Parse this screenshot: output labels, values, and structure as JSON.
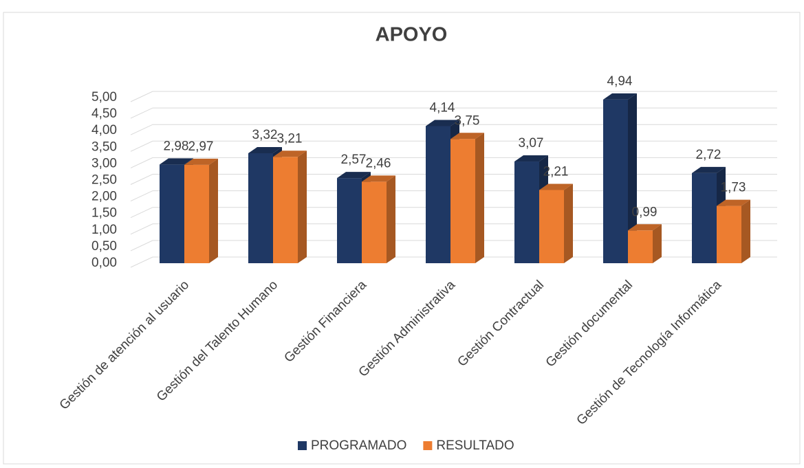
{
  "chart_data": {
    "type": "bar3d",
    "title": "APOYO",
    "categories": [
      "Gestión de atención al usuario",
      "Gestión del Talento Humano",
      "Gestión Financiera",
      "Gestión Administrativa",
      "Gestión Contractual",
      "Gestión documental",
      "Gestión de Tecnología Informática"
    ],
    "series": [
      {
        "name": "PROGRAMADO",
        "color": "#1f3864",
        "values": [
          2.98,
          3.32,
          2.57,
          4.14,
          3.07,
          4.94,
          2.72
        ],
        "value_labels": [
          "2,98",
          "3,32",
          "2,57",
          "4,14",
          "3,07",
          "4,94",
          "2,72"
        ]
      },
      {
        "name": "RESULTADO",
        "color": "#ed7d31",
        "values": [
          2.97,
          3.21,
          2.46,
          3.75,
          2.21,
          0.99,
          1.73
        ],
        "value_labels": [
          "2,97",
          "3,21",
          "2,46",
          "3,75",
          "2,21",
          "0,99",
          "1,73"
        ]
      }
    ],
    "ylim": [
      0,
      5
    ],
    "yticks": [
      {
        "value": 0,
        "label": "0,00"
      },
      {
        "value": 0.5,
        "label": "0,50"
      },
      {
        "value": 1,
        "label": "1,00"
      },
      {
        "value": 1.5,
        "label": "1,50"
      },
      {
        "value": 2,
        "label": "2,00"
      },
      {
        "value": 2.5,
        "label": "2,50"
      },
      {
        "value": 3,
        "label": "3,00"
      },
      {
        "value": 3.5,
        "label": "3,50"
      },
      {
        "value": 4,
        "label": "4,00"
      },
      {
        "value": 4.5,
        "label": "4,50"
      },
      {
        "value": 5,
        "label": "5,00"
      }
    ],
    "grid": true,
    "legend": "bottom"
  }
}
